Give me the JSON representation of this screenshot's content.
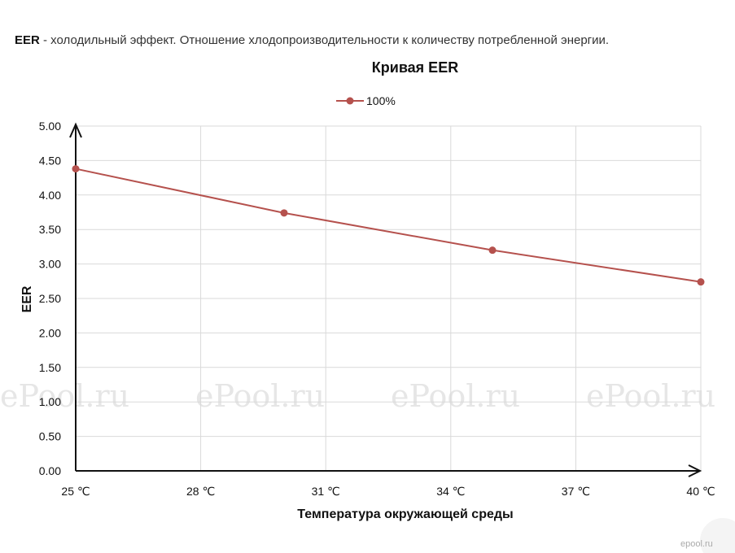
{
  "intro": {
    "term": "EER",
    "text": " - холодильный эффект. Отношение хлодопроизводительности к количеству потребленной энергии."
  },
  "watermark": "ePool.ru",
  "badge": "epool.ru",
  "colors": {
    "series": "#b5514d",
    "grid": "#d9d9d9",
    "axis": "#111111"
  },
  "chart_data": {
    "type": "line",
    "title": "Кривая EER",
    "xlabel": "Температура окружающей среды",
    "ylabel": "EER",
    "x_ticks": [
      "25 ℃",
      "28 ℃",
      "31 ℃",
      "34 ℃",
      "37 ℃",
      "40 ℃"
    ],
    "x_range": [
      25,
      40
    ],
    "y_ticks": [
      "0.00",
      "0.50",
      "1.00",
      "1.50",
      "2.00",
      "2.50",
      "3.00",
      "3.50",
      "4.00",
      "4.50",
      "5.00"
    ],
    "ylim": [
      0,
      5
    ],
    "grid": true,
    "legend_position": "top-center",
    "series": [
      {
        "name": "100%",
        "x": [
          25,
          30,
          35,
          40
        ],
        "y": [
          4.38,
          3.74,
          3.2,
          2.74
        ]
      }
    ]
  }
}
